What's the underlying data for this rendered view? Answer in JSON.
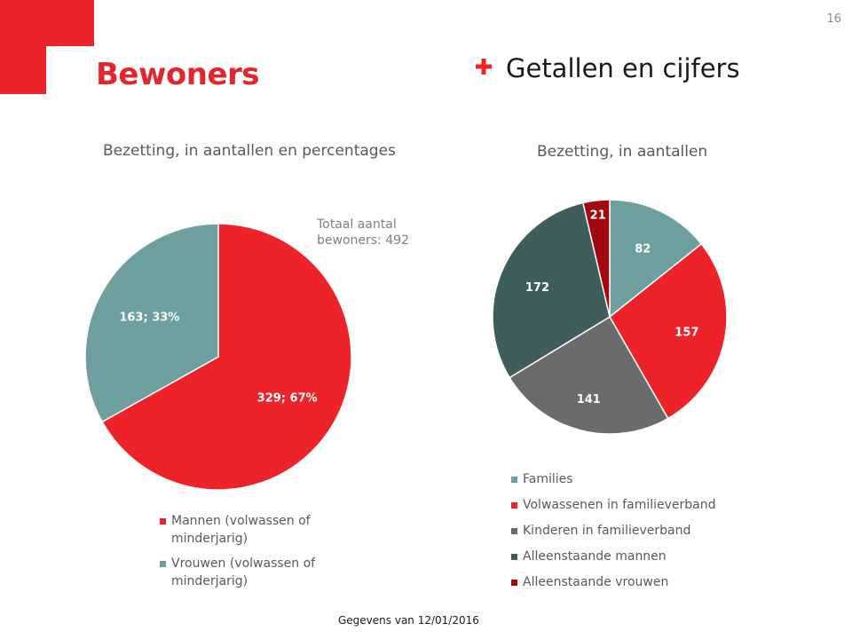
{
  "header": {
    "page_number": "16",
    "title": "Bewoners",
    "section_title": "Getallen en cijfers"
  },
  "colors": {
    "brand_red": "#ee2229",
    "teal": "#6c9f9e",
    "dark_teal": "#3f5e5b",
    "gray": "#6b6b6b",
    "dark_red": "#a3080e"
  },
  "footer": {
    "note": "Gegevens van 12/01/2016"
  },
  "chart_data": [
    {
      "type": "pie",
      "title": "Bezetting, in aantallen en percentages",
      "annotation": "Totaal aantal bewoners: 492",
      "categories": [
        "Mannen (volwassen of minderjarig)",
        "Vrouwen (volwassen of minderjarig)"
      ],
      "values": [
        329,
        163
      ],
      "data_labels": [
        "329; 67%",
        "163; 33%"
      ],
      "colors": [
        "#ee2229",
        "#6c9f9e"
      ],
      "legend": "bottom"
    },
    {
      "type": "pie",
      "title": "Bezetting, in aantallen",
      "categories": [
        "Families",
        "Volwassenen in familieverband",
        "Kinderen in familieverband",
        "Alleenstaande mannen",
        "Alleenstaande vrouwen"
      ],
      "values": [
        82,
        157,
        141,
        172,
        21
      ],
      "data_labels": [
        "82",
        "157",
        "141",
        "172",
        "21"
      ],
      "colors": [
        "#6c9f9e",
        "#ee2229",
        "#6b6b6b",
        "#3f5e5b",
        "#a3080e"
      ],
      "legend": "bottom"
    }
  ]
}
